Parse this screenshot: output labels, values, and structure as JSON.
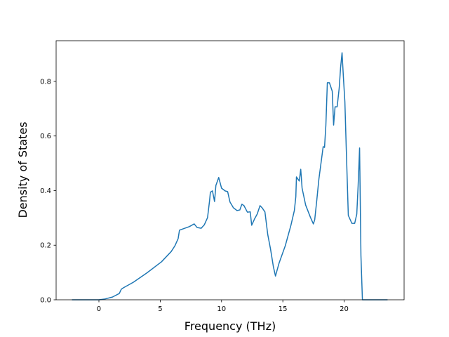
{
  "chart_data": {
    "type": "line",
    "x_label": "Frequency (THz)",
    "y_label": "Density of States",
    "color": "#1f77b4",
    "x": [
      -2.2,
      0,
      0.5,
      1.1,
      1.66,
      1.83,
      2.0,
      2.8,
      3.9,
      5.1,
      5.9,
      6.2,
      6.46,
      6.57,
      7.37,
      7.77,
      8.0,
      8.34,
      8.6,
      8.86,
      9.03,
      9.09,
      9.26,
      9.43,
      9.54,
      9.77,
      10.0,
      10.29,
      10.5,
      10.69,
      10.97,
      11.26,
      11.49,
      11.66,
      11.83,
      12.11,
      12.34,
      12.46,
      12.69,
      12.91,
      13.14,
      13.31,
      13.54,
      13.77,
      14.0,
      14.23,
      14.4,
      14.69,
      15.2,
      15.66,
      15.94,
      16.06,
      16.11,
      16.34,
      16.46,
      16.57,
      16.86,
      17.26,
      17.49,
      17.6,
      17.77,
      17.94,
      18.29,
      18.4,
      18.51,
      18.63,
      18.8,
      19.03,
      19.14,
      19.26,
      19.43,
      19.6,
      19.71,
      19.83,
      19.94,
      20.06,
      20.17,
      20.34,
      20.63,
      20.86,
      21.03,
      21.14,
      21.26,
      21.37,
      21.49,
      23.54
    ],
    "values": [
      0,
      0,
      0.003,
      0.01,
      0.023,
      0.039,
      0.044,
      0.064,
      0.098,
      0.139,
      0.177,
      0.198,
      0.224,
      0.255,
      0.268,
      0.278,
      0.265,
      0.262,
      0.275,
      0.301,
      0.365,
      0.394,
      0.399,
      0.36,
      0.419,
      0.448,
      0.409,
      0.399,
      0.396,
      0.358,
      0.337,
      0.327,
      0.329,
      0.35,
      0.345,
      0.321,
      0.322,
      0.273,
      0.296,
      0.314,
      0.345,
      0.337,
      0.322,
      0.239,
      0.185,
      0.121,
      0.087,
      0.134,
      0.198,
      0.273,
      0.327,
      0.378,
      0.45,
      0.435,
      0.478,
      0.409,
      0.347,
      0.301,
      0.278,
      0.293,
      0.365,
      0.442,
      0.561,
      0.558,
      0.64,
      0.795,
      0.795,
      0.764,
      0.64,
      0.707,
      0.707,
      0.777,
      0.851,
      0.905,
      0.815,
      0.725,
      0.558,
      0.309,
      0.28,
      0.28,
      0.314,
      0.417,
      0.556,
      0.162,
      0,
      0
    ],
    "xlim": [
      -3.49,
      24.89
    ],
    "ylim": [
      0,
      0.949
    ],
    "xticks": [
      0,
      5,
      10,
      15,
      20
    ],
    "yticks": [
      {
        "value": 0,
        "label": "0.0"
      },
      0.2,
      0.4,
      0.6,
      0.8
    ]
  }
}
